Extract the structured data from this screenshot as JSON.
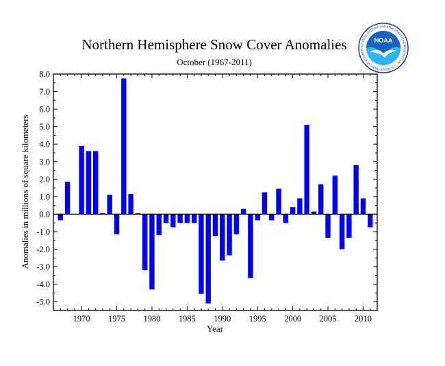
{
  "chart_data": {
    "type": "bar",
    "title": "Northern Hemisphere Snow Cover Anomalies",
    "subtitle": "October (1967-2011)",
    "xlabel": "Year",
    "ylabel": "Anomalies in millions of square kilometers",
    "ylim": [
      -5.5,
      8.0
    ],
    "xlim": [
      1966,
      2012
    ],
    "yticks": [
      -5.0,
      -4.0,
      -3.0,
      -2.0,
      -1.0,
      0.0,
      1.0,
      2.0,
      3.0,
      4.0,
      5.0,
      6.0,
      7.0,
      8.0
    ],
    "ytick_labels": [
      "-5.0",
      "-4.0",
      "-3.0",
      "-2.0",
      "-1.0",
      "0.0",
      "1.0",
      "2.0",
      "3.0",
      "4.0",
      "5.0",
      "6.0",
      "7.0",
      "8.0"
    ],
    "xticks": [
      1970,
      1975,
      1980,
      1985,
      1990,
      1995,
      2000,
      2005,
      2010
    ],
    "xtick_labels": [
      "1970",
      "1975",
      "1980",
      "1985",
      "1990",
      "1995",
      "2000",
      "2005",
      "2010"
    ],
    "bar_color": "#0000ff",
    "grid": false,
    "legend": "none",
    "x": [
      1967,
      1968,
      1969,
      1970,
      1971,
      1972,
      1973,
      1974,
      1975,
      1976,
      1977,
      1978,
      1979,
      1980,
      1981,
      1982,
      1983,
      1984,
      1985,
      1986,
      1987,
      1988,
      1989,
      1990,
      1991,
      1992,
      1993,
      1994,
      1995,
      1996,
      1997,
      1998,
      1999,
      2000,
      2001,
      2002,
      2003,
      2004,
      2005,
      2006,
      2007,
      2008,
      2009,
      2010,
      2011
    ],
    "values": [
      -0.35,
      1.85,
      0.0,
      3.9,
      3.6,
      3.6,
      0.05,
      1.1,
      -1.15,
      7.75,
      1.15,
      0.05,
      -3.2,
      -4.3,
      -1.2,
      -0.5,
      -0.75,
      -0.5,
      -0.5,
      -0.5,
      -4.55,
      -5.1,
      -1.25,
      -2.65,
      -2.35,
      -1.15,
      0.3,
      -3.65,
      -0.35,
      1.25,
      -0.35,
      1.45,
      -0.5,
      0.4,
      0.9,
      5.1,
      0.15,
      1.7,
      -1.35,
      2.2,
      -2.0,
      -1.35,
      2.8,
      0.9,
      -0.75
    ]
  },
  "logo": {
    "text": "NOAA",
    "ring_text": "NATIONAL OCEANIC AND ATMOSPHERIC ADMINISTRATION · U.S. DEPARTMENT OF COMMERCE",
    "colors": {
      "ring": "#1a3a9e",
      "sky": "#1565c0",
      "sea": "#29b6f6"
    }
  }
}
